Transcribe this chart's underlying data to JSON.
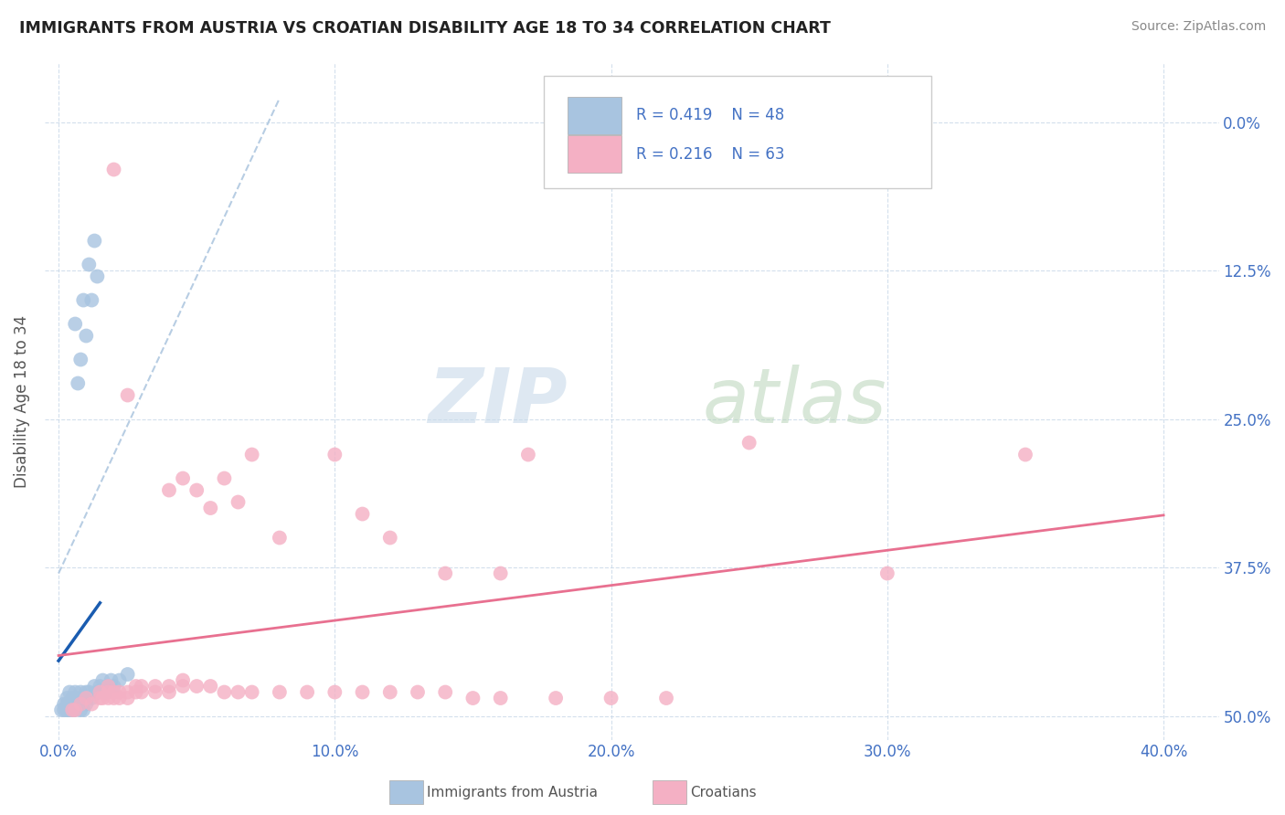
{
  "title": "IMMIGRANTS FROM AUSTRIA VS CROATIAN DISABILITY AGE 18 TO 34 CORRELATION CHART",
  "source": "Source: ZipAtlas.com",
  "ylabel": "Disability Age 18 to 34",
  "xticklabels": [
    "0.0%",
    "10.0%",
    "20.0%",
    "30.0%",
    "40.0%"
  ],
  "ytick_right_labels": [
    "50.0%",
    "37.5%",
    "25.0%",
    "12.5%",
    "0.0%"
  ],
  "xlim": [
    -0.005,
    0.42
  ],
  "ylim": [
    -0.02,
    0.55
  ],
  "ytick_vals": [
    0.0,
    0.125,
    0.25,
    0.375,
    0.5
  ],
  "xtick_vals": [
    0.0,
    0.1,
    0.2,
    0.3,
    0.4
  ],
  "legend_blue_r": "R = 0.419",
  "legend_blue_n": "N = 48",
  "legend_pink_r": "R = 0.216",
  "legend_pink_n": "N = 63",
  "legend_labels": [
    "Immigrants from Austria",
    "Croatians"
  ],
  "austria_color": "#a8c4e0",
  "croatian_color": "#f4b0c4",
  "austria_line_color": "#1a5cb0",
  "croatian_line_color": "#e87090",
  "dashed_line_color": "#b0c8e0",
  "blue_scatter": [
    [
      0.001,
      0.005
    ],
    [
      0.002,
      0.005
    ],
    [
      0.002,
      0.01
    ],
    [
      0.003,
      0.005
    ],
    [
      0.003,
      0.01
    ],
    [
      0.003,
      0.015
    ],
    [
      0.004,
      0.005
    ],
    [
      0.004,
      0.01
    ],
    [
      0.004,
      0.02
    ],
    [
      0.005,
      0.005
    ],
    [
      0.005,
      0.01
    ],
    [
      0.005,
      0.015
    ],
    [
      0.006,
      0.005
    ],
    [
      0.006,
      0.01
    ],
    [
      0.006,
      0.02
    ],
    [
      0.007,
      0.01
    ],
    [
      0.007,
      0.015
    ],
    [
      0.008,
      0.005
    ],
    [
      0.008,
      0.01
    ],
    [
      0.008,
      0.02
    ],
    [
      0.009,
      0.005
    ],
    [
      0.009,
      0.015
    ],
    [
      0.01,
      0.01
    ],
    [
      0.01,
      0.02
    ],
    [
      0.011,
      0.02
    ],
    [
      0.012,
      0.015
    ],
    [
      0.013,
      0.025
    ],
    [
      0.014,
      0.02
    ],
    [
      0.015,
      0.025
    ],
    [
      0.016,
      0.03
    ],
    [
      0.017,
      0.02
    ],
    [
      0.018,
      0.025
    ],
    [
      0.019,
      0.03
    ],
    [
      0.02,
      0.025
    ],
    [
      0.022,
      0.03
    ],
    [
      0.025,
      0.035
    ],
    [
      0.003,
      0.005
    ],
    [
      0.004,
      0.005
    ],
    [
      0.005,
      0.005
    ],
    [
      0.006,
      0.33
    ],
    [
      0.007,
      0.28
    ],
    [
      0.008,
      0.3
    ],
    [
      0.009,
      0.35
    ],
    [
      0.01,
      0.32
    ],
    [
      0.011,
      0.38
    ],
    [
      0.012,
      0.35
    ],
    [
      0.013,
      0.4
    ],
    [
      0.014,
      0.37
    ]
  ],
  "pink_scatter": [
    [
      0.005,
      0.005
    ],
    [
      0.006,
      0.005
    ],
    [
      0.008,
      0.01
    ],
    [
      0.01,
      0.015
    ],
    [
      0.012,
      0.01
    ],
    [
      0.015,
      0.015
    ],
    [
      0.015,
      0.02
    ],
    [
      0.016,
      0.015
    ],
    [
      0.018,
      0.015
    ],
    [
      0.018,
      0.02
    ],
    [
      0.018,
      0.025
    ],
    [
      0.02,
      0.015
    ],
    [
      0.02,
      0.02
    ],
    [
      0.022,
      0.02
    ],
    [
      0.022,
      0.015
    ],
    [
      0.025,
      0.02
    ],
    [
      0.025,
      0.015
    ],
    [
      0.028,
      0.02
    ],
    [
      0.028,
      0.025
    ],
    [
      0.03,
      0.02
    ],
    [
      0.03,
      0.025
    ],
    [
      0.035,
      0.025
    ],
    [
      0.035,
      0.02
    ],
    [
      0.04,
      0.025
    ],
    [
      0.04,
      0.02
    ],
    [
      0.045,
      0.025
    ],
    [
      0.045,
      0.03
    ],
    [
      0.05,
      0.025
    ],
    [
      0.055,
      0.025
    ],
    [
      0.06,
      0.02
    ],
    [
      0.065,
      0.02
    ],
    [
      0.07,
      0.02
    ],
    [
      0.08,
      0.02
    ],
    [
      0.09,
      0.02
    ],
    [
      0.1,
      0.02
    ],
    [
      0.11,
      0.02
    ],
    [
      0.12,
      0.02
    ],
    [
      0.13,
      0.02
    ],
    [
      0.14,
      0.02
    ],
    [
      0.15,
      0.015
    ],
    [
      0.16,
      0.015
    ],
    [
      0.18,
      0.015
    ],
    [
      0.2,
      0.015
    ],
    [
      0.22,
      0.015
    ],
    [
      0.02,
      0.46
    ],
    [
      0.025,
      0.27
    ],
    [
      0.04,
      0.19
    ],
    [
      0.045,
      0.2
    ],
    [
      0.05,
      0.19
    ],
    [
      0.055,
      0.175
    ],
    [
      0.06,
      0.2
    ],
    [
      0.065,
      0.18
    ],
    [
      0.07,
      0.22
    ],
    [
      0.08,
      0.15
    ],
    [
      0.1,
      0.22
    ],
    [
      0.11,
      0.17
    ],
    [
      0.12,
      0.15
    ],
    [
      0.14,
      0.12
    ],
    [
      0.16,
      0.12
    ],
    [
      0.17,
      0.22
    ],
    [
      0.25,
      0.23
    ],
    [
      0.35,
      0.22
    ],
    [
      0.3,
      0.12
    ]
  ],
  "watermark_zip": "ZIP",
  "watermark_atlas": "atlas",
  "background_color": "#ffffff",
  "grid_color": "#c8d8e8",
  "title_color": "#222222",
  "tick_color": "#4472c4",
  "source_color": "#888888"
}
